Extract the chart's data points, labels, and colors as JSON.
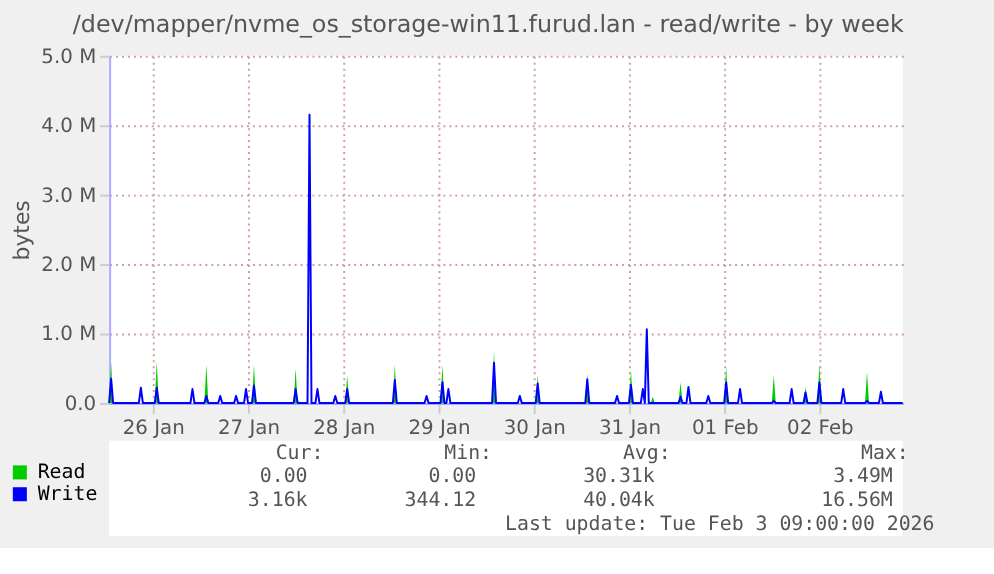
{
  "chart_data": {
    "type": "line",
    "title": "/dev/mapper/nvme_os_storage-win11.furud.lan - read/write - by week",
    "ylabel": "bytes",
    "x": [
      "2026-01-26T01:00",
      "2026-01-26T01:30",
      "2026-01-26T02:00",
      "2026-01-26T08:30",
      "2026-01-26T09:00",
      "2026-01-26T09:30",
      "2026-01-26T12:30",
      "2026-01-26T13:00",
      "2026-01-26T13:30",
      "2026-01-26T21:30",
      "2026-01-26T22:00",
      "2026-01-26T22:30",
      "2026-01-27T01:00",
      "2026-01-27T01:30",
      "2026-01-27T02:00",
      "2026-01-27T04:30",
      "2026-01-27T05:00",
      "2026-01-27T05:30",
      "2026-01-27T08:30",
      "2026-01-27T09:00",
      "2026-01-27T09:30",
      "2026-01-27T11:00",
      "2026-01-27T11:30",
      "2026-01-27T12:00",
      "2026-01-27T13:00",
      "2026-01-27T13:30",
      "2026-01-27T14:00",
      "2026-01-27T23:30",
      "2026-01-28T00:00",
      "2026-01-28T00:30",
      "2026-01-28T03:00",
      "2026-01-28T03:30",
      "2026-01-28T04:00",
      "2026-01-28T05:00",
      "2026-01-28T05:30",
      "2026-01-28T06:00",
      "2026-01-28T09:30",
      "2026-01-28T10:00",
      "2026-01-28T10:30",
      "2026-01-28T12:30",
      "2026-01-28T13:00",
      "2026-01-28T13:30",
      "2026-01-29T00:30",
      "2026-01-29T01:00",
      "2026-01-29T01:30",
      "2026-01-29T08:30",
      "2026-01-29T09:00",
      "2026-01-29T09:30",
      "2026-01-29T12:30",
      "2026-01-29T13:00",
      "2026-01-29T13:30",
      "2026-01-29T14:00",
      "2026-01-29T14:30",
      "2026-01-29T15:00",
      "2026-01-30T01:30",
      "2026-01-30T02:00",
      "2026-01-30T02:30",
      "2026-01-30T08:00",
      "2026-01-30T08:30",
      "2026-01-30T09:00",
      "2026-01-30T12:30",
      "2026-01-30T13:00",
      "2026-01-30T13:30",
      "2026-01-31T01:00",
      "2026-01-31T01:30",
      "2026-01-31T02:00",
      "2026-01-31T08:30",
      "2026-01-31T09:00",
      "2026-01-31T09:30",
      "2026-01-31T12:00",
      "2026-01-31T12:30",
      "2026-01-31T13:00",
      "2026-01-31T15:00",
      "2026-01-31T15:30",
      "2026-01-31T16:00",
      "2026-01-31T16:30",
      "2026-01-31T17:00",
      "2026-01-31T17:30",
      "2026-01-31T18:00",
      "2026-01-31T18:30",
      "2026-02-01T00:30",
      "2026-02-01T01:00",
      "2026-02-01T01:30",
      "2026-02-01T02:30",
      "2026-02-01T03:00",
      "2026-02-01T03:30",
      "2026-02-01T07:30",
      "2026-02-01T08:00",
      "2026-02-01T08:30",
      "2026-02-01T12:00",
      "2026-02-01T12:30",
      "2026-02-01T13:00",
      "2026-02-01T15:30",
      "2026-02-01T16:00",
      "2026-02-01T16:30",
      "2026-02-02T00:00",
      "2026-02-02T00:30",
      "2026-02-02T01:00",
      "2026-02-02T04:30",
      "2026-02-02T05:00",
      "2026-02-02T05:30",
      "2026-02-02T08:00",
      "2026-02-02T08:30",
      "2026-02-02T09:00",
      "2026-02-02T11:30",
      "2026-02-02T12:00",
      "2026-02-02T12:30",
      "2026-02-02T17:30",
      "2026-02-02T18:00",
      "2026-02-02T18:30",
      "2026-02-02T23:30",
      "2026-02-03T00:00",
      "2026-02-03T00:30",
      "2026-02-03T03:00",
      "2026-02-03T03:30",
      "2026-02-03T04:00",
      "2026-02-03T09:00"
    ],
    "series": [
      {
        "name": "Read",
        "type": "area",
        "color": "#00cc00",
        "values": [
          0,
          580000,
          0,
          0,
          0,
          0,
          0,
          600000,
          0,
          0,
          0,
          0,
          0,
          550000,
          0,
          0,
          0,
          0,
          0,
          0,
          0,
          0,
          0,
          0,
          0,
          550000,
          0,
          0,
          500000,
          0,
          0,
          0,
          0,
          0,
          0,
          0,
          0,
          0,
          0,
          0,
          400000,
          0,
          0,
          550000,
          0,
          0,
          0,
          0,
          0,
          550000,
          0,
          0,
          0,
          0,
          0,
          750000,
          0,
          0,
          0,
          0,
          0,
          400000,
          0,
          0,
          420000,
          0,
          0,
          0,
          0,
          0,
          470000,
          0,
          0,
          0,
          0,
          0,
          0,
          0,
          90000,
          0,
          0,
          300000,
          0,
          0,
          0,
          0,
          0,
          0,
          0,
          0,
          520000,
          0,
          0,
          0,
          0,
          0,
          400000,
          0,
          0,
          0,
          0,
          0,
          230000,
          0,
          0,
          560000,
          0,
          0,
          0,
          0,
          0,
          450000,
          0,
          0,
          0,
          0,
          0
        ]
      },
      {
        "name": "Write",
        "color": "#0000ff",
        "values": [
          0,
          350000,
          0,
          0,
          220000,
          0,
          0,
          220000,
          0,
          0,
          200000,
          0,
          0,
          100000,
          0,
          0,
          100000,
          0,
          0,
          100000,
          0,
          0,
          200000,
          0,
          0,
          250000,
          0,
          0,
          200000,
          0,
          0,
          4150000,
          0,
          0,
          200000,
          0,
          0,
          100000,
          0,
          0,
          200000,
          0,
          0,
          330000,
          0,
          0,
          100000,
          0,
          0,
          300000,
          0,
          0,
          200000,
          0,
          0,
          580000,
          0,
          0,
          100000,
          0,
          0,
          280000,
          0,
          0,
          340000,
          0,
          0,
          100000,
          0,
          0,
          260000,
          0,
          0,
          200000,
          0,
          1060000,
          0,
          0,
          0,
          0,
          0,
          90000,
          0,
          0,
          230000,
          0,
          0,
          100000,
          0,
          0,
          300000,
          0,
          0,
          200000,
          0,
          0,
          30000,
          0,
          0,
          200000,
          0,
          0,
          150000,
          0,
          0,
          300000,
          0,
          0,
          200000,
          0,
          0,
          30000,
          0,
          0,
          160000,
          0,
          0
        ]
      }
    ],
    "xlim": [
      "2026-01-26T01:00",
      "2026-02-03T09:00"
    ],
    "xticks": [
      {
        "value": "2026-01-26T12:00",
        "label": "26 Jan"
      },
      {
        "value": "2026-01-27T12:00",
        "label": "27 Jan"
      },
      {
        "value": "2026-01-28T12:00",
        "label": "28 Jan"
      },
      {
        "value": "2026-01-29T12:00",
        "label": "29 Jan"
      },
      {
        "value": "2026-01-30T12:00",
        "label": "30 Jan"
      },
      {
        "value": "2026-01-31T12:00",
        "label": "31 Jan"
      },
      {
        "value": "2026-02-01T12:00",
        "label": "01 Feb"
      },
      {
        "value": "2026-02-02T12:00",
        "label": "02 Feb"
      }
    ],
    "ylim": [
      0,
      5000000
    ],
    "yticks": [
      {
        "value": 0,
        "label": "0.0"
      },
      {
        "value": 1000000,
        "label": "1.0 M"
      },
      {
        "value": 2000000,
        "label": "2.0 M"
      },
      {
        "value": 3000000,
        "label": "3.0 M"
      },
      {
        "value": 4000000,
        "label": "4.0 M"
      },
      {
        "value": 5000000,
        "label": "5.0 M"
      }
    ],
    "grid": true,
    "legend": "bottom left",
    "annotations": [
      "Cur:",
      "Min:",
      "Avg:",
      "Max:",
      "0.00",
      "0.00",
      "30.31k",
      "3.49M",
      "3.16k",
      "344.12",
      "40.04k",
      "16.56M",
      "Last update: Tue Feb  3 09:00:00 2026"
    ]
  }
}
